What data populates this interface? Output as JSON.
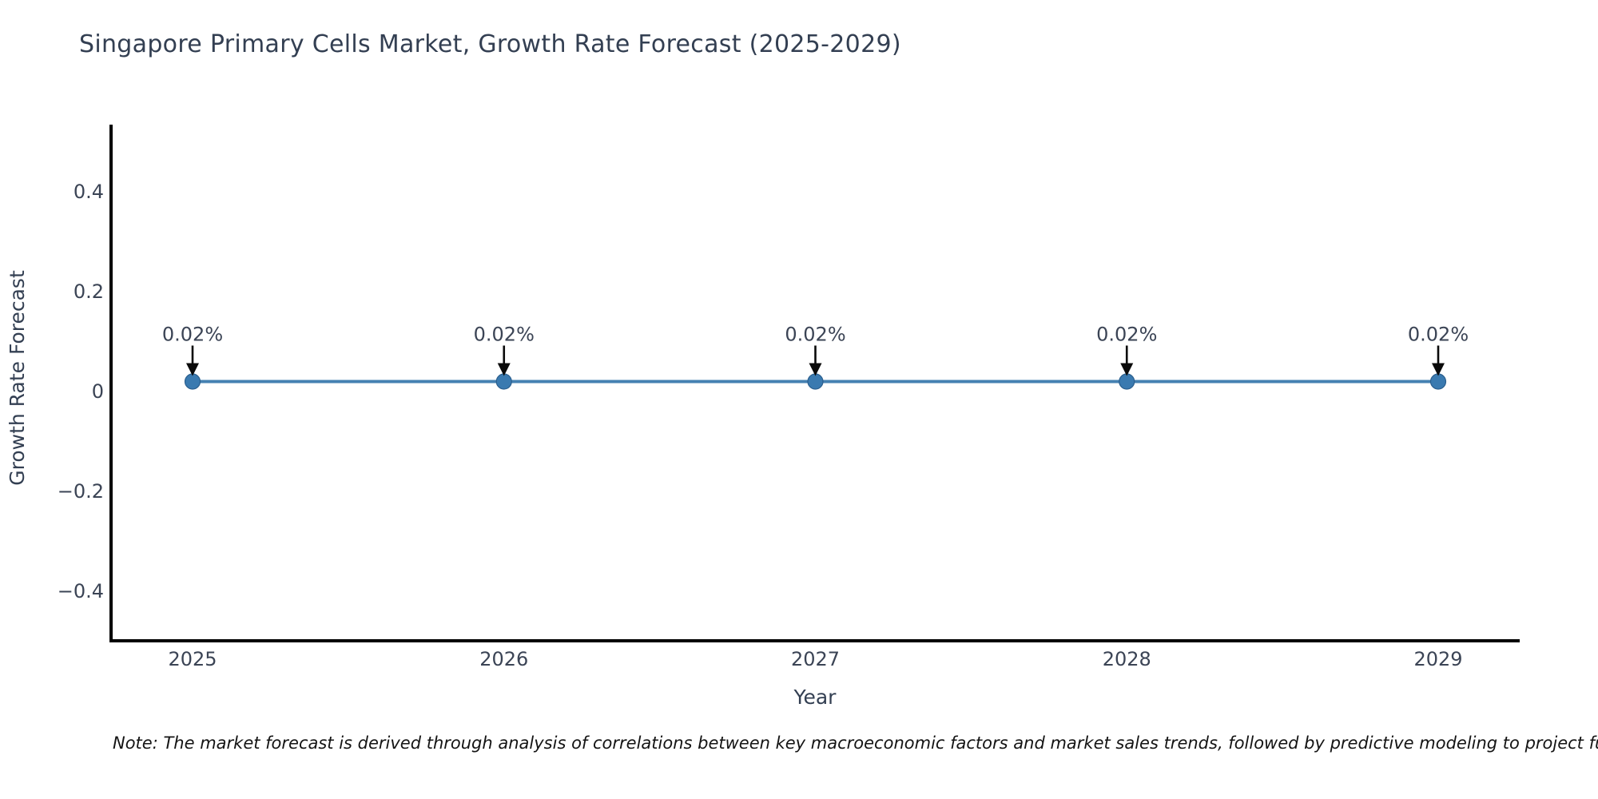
{
  "page": {
    "title": "Singapore Primary Cells Market, Growth Rate Forecast (2025-2029)",
    "note": "Note: The market forecast is derived through analysis of correlations between key macroeconomic factors and market sales trends, followed by predictive modeling to project future sal"
  },
  "chart_data": {
    "type": "line",
    "title": "Singapore Primary Cells Market, Growth Rate Forecast (2025-2029)",
    "xlabel": "Year",
    "ylabel": "Growth Rate Forecast",
    "categories": [
      "2025",
      "2026",
      "2027",
      "2028",
      "2029"
    ],
    "values": [
      0.02,
      0.02,
      0.02,
      0.02,
      0.02
    ],
    "point_labels": [
      "0.02%",
      "0.02%",
      "0.02%",
      "0.02%",
      "0.02%"
    ],
    "ytick_labels": [
      "0.4",
      "0.2",
      "0",
      "−0.2",
      "−0.4"
    ],
    "ytick_values": [
      0.4,
      0.2,
      0,
      -0.2,
      -0.4
    ],
    "ylim": [
      -0.5,
      0.52
    ],
    "grid": false,
    "legend": false,
    "annotation_style": "black down-arrow from each 0.02% label to its marker",
    "colors": {
      "line": "#4581b2",
      "marker": "#3a7ab0",
      "marker_edge": "#2b5f8e",
      "arrow": "#0a0a0a",
      "axis": "#000000",
      "text": "#333f52",
      "note_text": "#141414",
      "background": "#ffffff"
    }
  }
}
